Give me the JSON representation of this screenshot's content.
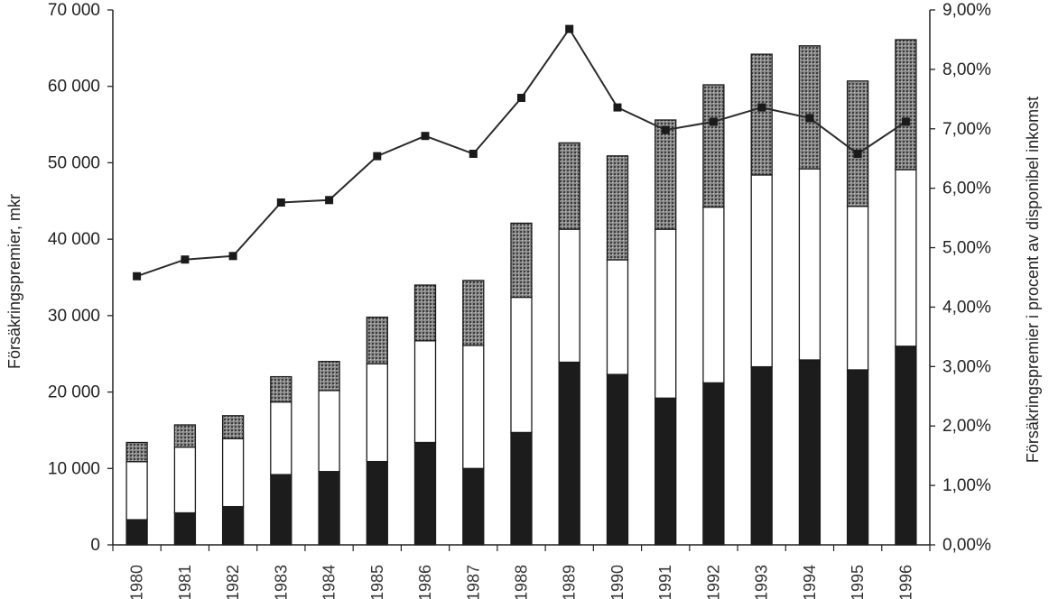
{
  "chart_data": {
    "type": "bar",
    "stacked": true,
    "categories": [
      "1980",
      "1981",
      "1982",
      "1983",
      "1984",
      "1985",
      "1986",
      "1987",
      "1988",
      "1989",
      "1990",
      "1991",
      "1992",
      "1993",
      "1994",
      "1995",
      "1996"
    ],
    "series": [
      {
        "values": [
          3300,
          4200,
          5000,
          9200,
          9600,
          10900,
          13400,
          10000,
          14700,
          23900,
          22300,
          19200,
          21200,
          23300,
          24200,
          22900,
          26000
        ]
      },
      {
        "values": [
          7600,
          8600,
          8900,
          9500,
          10600,
          12800,
          13300,
          16100,
          17700,
          17400,
          15000,
          22100,
          23000,
          25100,
          25000,
          21400,
          23100
        ]
      },
      {
        "values": [
          2500,
          2900,
          3000,
          3300,
          3800,
          6100,
          7300,
          8500,
          9700,
          11300,
          13600,
          14300,
          16000,
          15800,
          16100,
          16400,
          17000
        ]
      }
    ],
    "line_series": {
      "axis": "right",
      "values": [
        4.52,
        4.8,
        4.86,
        5.76,
        5.8,
        6.54,
        6.88,
        6.58,
        7.52,
        8.68,
        7.36,
        6.98,
        7.12,
        7.36,
        7.18,
        6.58,
        7.12
      ]
    },
    "y_left": {
      "label": "Försäkringspremier, mkr",
      "ylim": [
        0,
        70000
      ],
      "tick_labels": [
        "0",
        "10 000",
        "20 000",
        "30 000",
        "40 000",
        "50 000",
        "60 000",
        "70 000"
      ]
    },
    "y_right": {
      "label": "Försäkringspremier i procent av disponibel inkomst",
      "ylim": [
        0,
        9
      ],
      "tick_labels": [
        "0,00%",
        "1,00%",
        "2,00%",
        "3,00%",
        "4,00%",
        "5,00%",
        "6,00%",
        "7,00%",
        "8,00%",
        "9,00%"
      ]
    },
    "grid": false,
    "colors": {
      "bottom": "#1c1c1c",
      "middle": "#ffffff",
      "top": "#6e6e6e",
      "line": "#2a2a2a"
    }
  }
}
